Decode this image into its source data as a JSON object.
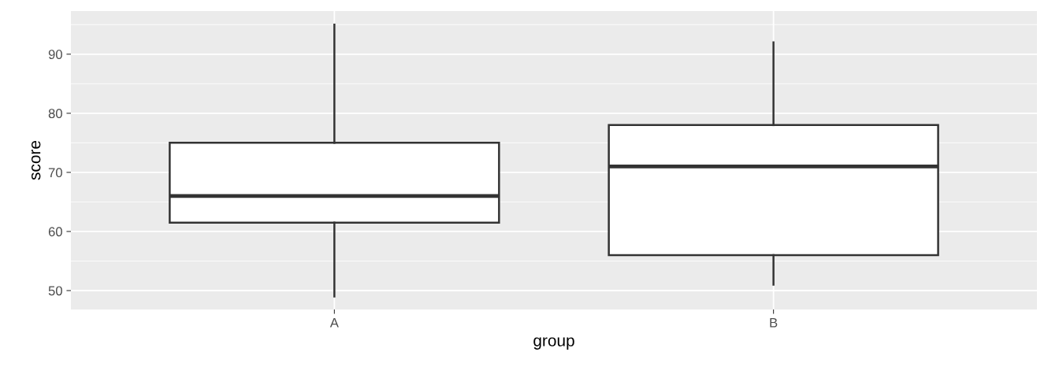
{
  "chart_data": {
    "type": "box",
    "xlabel": "group",
    "ylabel": "score",
    "categories": [
      "A",
      "B"
    ],
    "boxes": [
      {
        "low": 49,
        "q1": 61.5,
        "median": 66,
        "q3": 75,
        "high": 95
      },
      {
        "low": 51,
        "q1": 56,
        "median": 71,
        "q3": 78,
        "high": 92
      }
    ],
    "ylim": [
      46.8,
      97.3
    ],
    "yticks": [
      50,
      60,
      70,
      80,
      90
    ],
    "grid": true,
    "legend": false
  }
}
